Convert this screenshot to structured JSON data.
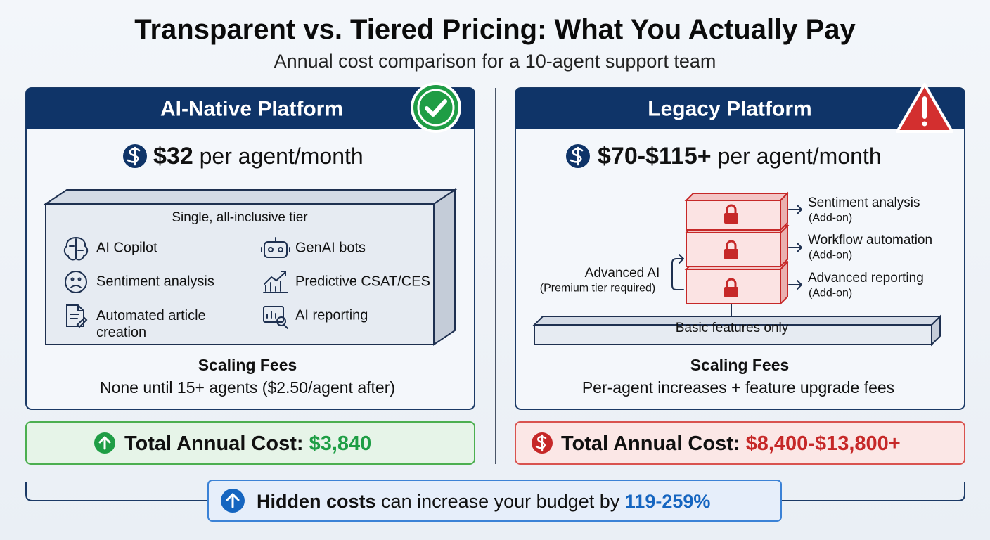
{
  "header": {
    "title": "Transparent vs. Tiered Pricing: What You Actually Pay",
    "subtitle": "Annual cost comparison for a 10-agent support team"
  },
  "left": {
    "title": "AI-Native Platform",
    "price": "$32",
    "price_unit": "per agent/month",
    "tier_label": "Single, all-inclusive tier",
    "features": [
      "AI Copilot",
      "GenAI bots",
      "Sentiment analysis",
      "Predictive CSAT/CES",
      "Automated article creation",
      "AI reporting"
    ],
    "scaling_title": "Scaling Fees",
    "scaling_text": "None until 15+ agents ($2.50/agent after)",
    "total_label": "Total Annual Cost:",
    "total_value": "$3,840"
  },
  "right": {
    "title": "Legacy Platform",
    "price": "$70-$115+",
    "price_unit": "per agent/month",
    "addons": [
      {
        "name": "Sentiment analysis",
        "note": "(Add-on)"
      },
      {
        "name": "Workflow automation",
        "note": "(Add-on)"
      },
      {
        "name": "Advanced reporting",
        "note": "(Add-on)"
      }
    ],
    "advanced": {
      "name": "Advanced AI",
      "note": "(Premium tier required)"
    },
    "base": "Basic features only",
    "scaling_title": "Scaling Fees",
    "scaling_text": "Per-agent increases + feature upgrade fees",
    "total_label": "Total Annual Cost:",
    "total_value": "$8,400-$13,800+"
  },
  "footer": {
    "lead": "Hidden costs",
    "text": "can increase your budget by",
    "value": "119-259%"
  }
}
